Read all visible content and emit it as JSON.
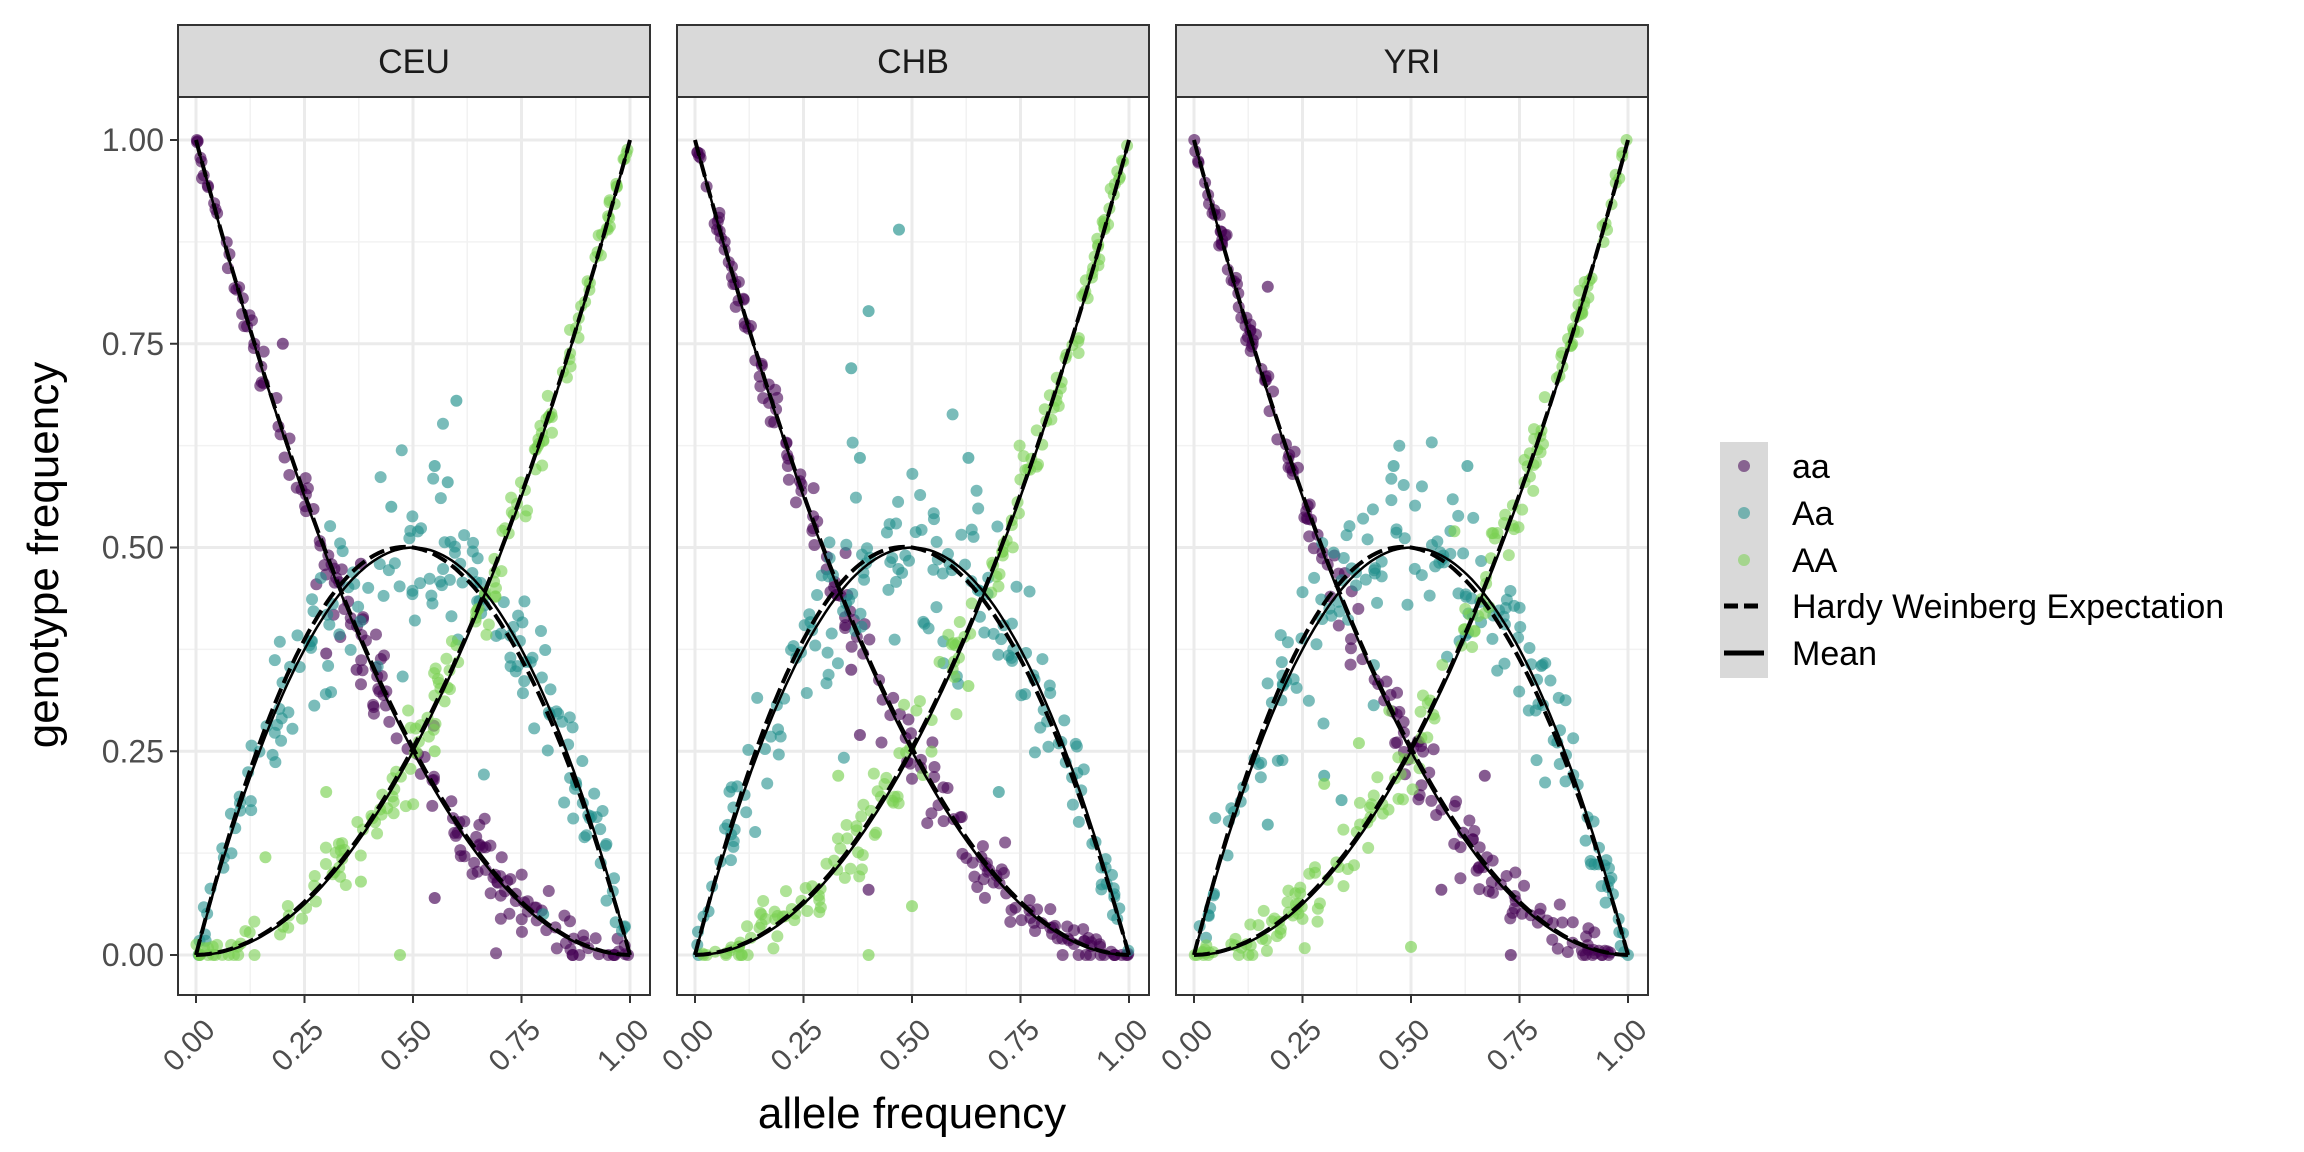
{
  "chart_data": {
    "type": "scatter",
    "xlabel": "allele frequency",
    "ylabel": "genotype frequency",
    "xlim": [
      0,
      1
    ],
    "ylim": [
      0,
      1
    ],
    "x_ticks": [
      "0.00",
      "0.25",
      "0.50",
      "0.75",
      "1.00"
    ],
    "y_ticks": [
      "0.00",
      "0.25",
      "0.50",
      "0.75",
      "1.00"
    ],
    "grid": true,
    "legend_position": "right",
    "panels": [
      "CEU",
      "CHB",
      "YRI"
    ],
    "series": [
      {
        "name": "aa",
        "color": "#440154"
      },
      {
        "name": "Aa",
        "color": "#21908C"
      },
      {
        "name": "AA",
        "color": "#7AD151"
      }
    ],
    "lines": [
      {
        "name": "Hardy Weinberg Expectation",
        "style": "dashed",
        "color": "#000000"
      },
      {
        "name": "Mean",
        "style": "solid",
        "color": "#000000"
      }
    ],
    "outliers": {
      "CEU": {
        "aa": [
          [
            0.2,
            0.75
          ],
          [
            0.3,
            0.37
          ],
          [
            0.37,
            0.35
          ],
          [
            0.55,
            0.07
          ],
          [
            0.38,
            0.48
          ]
        ],
        "Aa": [
          [
            0.6,
            0.68
          ],
          [
            0.55,
            0.6
          ],
          [
            0.58,
            0.58
          ],
          [
            0.45,
            0.55
          ],
          [
            0.8,
            0.05
          ]
        ],
        "AA": [
          [
            0.47,
            0.0
          ],
          [
            0.38,
            0.09
          ],
          [
            0.3,
            0.2
          ],
          [
            0.6,
            0.38
          ],
          [
            0.55,
            0.25
          ],
          [
            0.16,
            0.12
          ]
        ]
      },
      "CHB": {
        "aa": [
          [
            0.4,
            0.08
          ],
          [
            0.38,
            0.27
          ],
          [
            0.36,
            0.35
          ],
          [
            0.66,
            0.12
          ]
        ],
        "Aa": [
          [
            0.47,
            0.89
          ],
          [
            0.4,
            0.79
          ],
          [
            0.36,
            0.72
          ],
          [
            0.63,
            0.61
          ],
          [
            0.38,
            0.61
          ],
          [
            0.7,
            0.2
          ]
        ],
        "AA": [
          [
            0.4,
            0.0
          ],
          [
            0.5,
            0.06
          ],
          [
            0.33,
            0.22
          ],
          [
            0.63,
            0.33
          ],
          [
            0.6,
            0.38
          ]
        ]
      },
      "YRI": {
        "aa": [
          [
            0.17,
            0.82
          ],
          [
            0.57,
            0.08
          ],
          [
            0.73,
            0.0
          ],
          [
            0.67,
            0.22
          ],
          [
            0.62,
            0.15
          ]
        ],
        "Aa": [
          [
            0.63,
            0.6
          ],
          [
            0.3,
            0.22
          ],
          [
            0.34,
            0.19
          ],
          [
            0.17,
            0.16
          ],
          [
            0.46,
            0.6
          ]
        ],
        "AA": [
          [
            0.5,
            0.01
          ],
          [
            0.38,
            0.26
          ],
          [
            0.3,
            0.21
          ],
          [
            0.6,
            0.52
          ],
          [
            0.45,
            0.3
          ]
        ]
      }
    }
  }
}
